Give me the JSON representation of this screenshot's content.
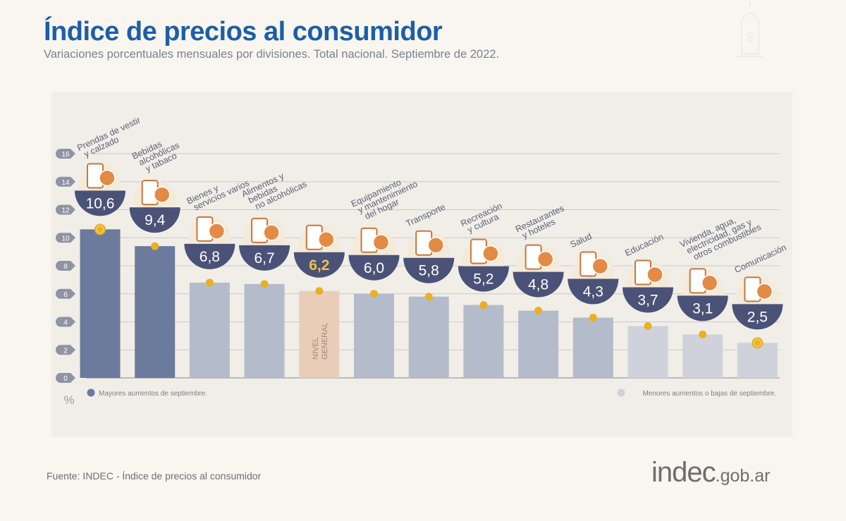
{
  "header": {
    "title": "Índice de precios al consumidor",
    "subtitle": "Variaciones porcentuales mensuales por divisiones. Total nacional. Septiembre de 2022."
  },
  "footer": {
    "source": "Fuente: INDEC - Índice de precios al consumidor",
    "logo_main": "indec",
    "logo_domain": ".gob.ar"
  },
  "colors": {
    "major": "#6b7a9d",
    "middle": "#b4bbcb",
    "minor": "#cfd2da",
    "general": "#e9cdb9",
    "badge": "#4b5277",
    "dot": "#eab022",
    "general_value": "#f0c04a"
  },
  "chart_data": {
    "type": "bar",
    "title": "Índice de precios al consumidor",
    "unit_label": "%",
    "ylim": [
      0,
      16
    ],
    "yticks": [
      0,
      2,
      4,
      6,
      8,
      10,
      12,
      14,
      16
    ],
    "grid": true,
    "categories": [
      [
        "Prendas de vestir",
        "y calzado"
      ],
      [
        "Bebidas",
        "alcohólicas",
        "y tabaco"
      ],
      [
        "Bienes y",
        "servicios varios"
      ],
      [
        "Alimentos y",
        "bebidas",
        "no alcohólicas"
      ],
      [
        "NIVEL",
        "GENERAL"
      ],
      [
        "Equipamiento",
        "y mantenimiento",
        "del hogar"
      ],
      [
        "Transporte"
      ],
      [
        "Recreación",
        "y cultura"
      ],
      [
        "Restaurantes",
        "y hoteles"
      ],
      [
        "Salud"
      ],
      [
        "Educación"
      ],
      [
        "Vivienda, agua,",
        "electricidad, gas y",
        "otros combustibles"
      ],
      [
        "Comunicación"
      ]
    ],
    "values": [
      10.6,
      9.4,
      6.8,
      6.7,
      6.2,
      6.0,
      5.8,
      5.2,
      4.8,
      4.3,
      3.7,
      3.1,
      2.5
    ],
    "value_labels": [
      "10,6",
      "9,4",
      "6,8",
      "6,7",
      "6,2",
      "6,0",
      "5,8",
      "5,2",
      "4,8",
      "4,3",
      "3,7",
      "3,1",
      "2,5"
    ],
    "groups": [
      "major",
      "major",
      "middle",
      "middle",
      "general",
      "middle",
      "middle",
      "middle",
      "middle",
      "middle",
      "minor",
      "minor",
      "minor"
    ],
    "icons": [
      "clothing-icon",
      "drinks-icon",
      "comb-scissors-icon",
      "food-icon",
      "shopping-bag-icon",
      "washing-machine-icon",
      "bus-icon",
      "umbrella-sun-icon",
      "restaurant-icon",
      "health-cross-icon",
      "notebook-icon",
      "lightbulb-key-icon",
      "phone-icon"
    ],
    "legend": [
      {
        "label": "Mayores aumentos de septiembre.",
        "group": "major",
        "position": "bottom-left"
      },
      {
        "label": "Menores aumentos o bajas de septiembre.",
        "group": "minor",
        "position": "bottom-right"
      }
    ]
  }
}
